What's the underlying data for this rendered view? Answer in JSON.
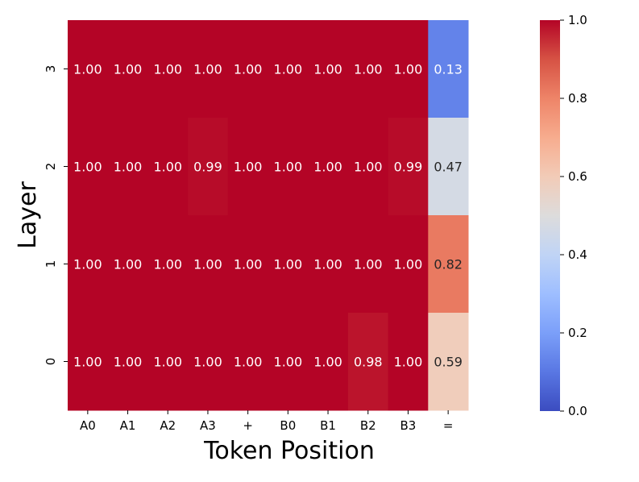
{
  "chart_data": {
    "type": "heatmap",
    "xlabel": "Token Position",
    "ylabel": "Layer",
    "x_categories": [
      "A0",
      "A1",
      "A2",
      "A3",
      "+",
      "B0",
      "B1",
      "B2",
      "B3",
      "="
    ],
    "y_categories": [
      "3",
      "2",
      "1",
      "0"
    ],
    "values": [
      [
        1.0,
        1.0,
        1.0,
        1.0,
        1.0,
        1.0,
        1.0,
        1.0,
        1.0,
        0.13
      ],
      [
        1.0,
        1.0,
        1.0,
        0.99,
        1.0,
        1.0,
        1.0,
        1.0,
        0.99,
        0.47
      ],
      [
        1.0,
        1.0,
        1.0,
        1.0,
        1.0,
        1.0,
        1.0,
        1.0,
        1.0,
        0.82
      ],
      [
        1.0,
        1.0,
        1.0,
        1.0,
        1.0,
        1.0,
        1.0,
        0.98,
        1.0,
        0.59
      ]
    ],
    "value_format": "2-decimal",
    "colormap": "coolwarm",
    "vmin": 0.0,
    "vmax": 1.0,
    "colorbar_ticks": [
      "0.0",
      "0.2",
      "0.4",
      "0.6",
      "0.8",
      "1.0"
    ]
  }
}
